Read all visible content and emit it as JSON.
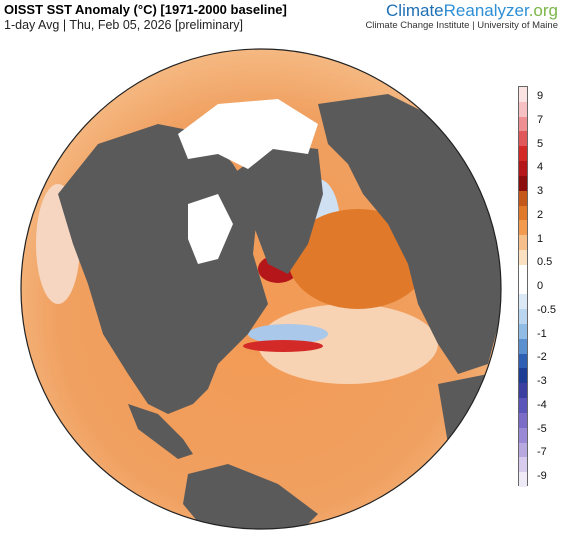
{
  "header": {
    "title": "OISST SST Anomaly (°C) [1971-2000 baseline]",
    "subtitle": "1-day Avg | Thu, Feb 05, 2026 [preliminary]"
  },
  "brand": {
    "name_part1": "Climate",
    "name_part2": "Reanalyzer",
    "name_part3": ".org",
    "subtitle": "Climate Change Institute | University of Maine"
  },
  "colorbar": {
    "labels": [
      "9",
      "7",
      "5",
      "4",
      "3",
      "2",
      "1",
      "0.5",
      "0",
      "-0.5",
      "-1",
      "-2",
      "-3",
      "-4",
      "-5",
      "-7",
      "-9"
    ],
    "colors": [
      "#fbe3e4",
      "#f7c0c2",
      "#ee8f91",
      "#e0585a",
      "#d42a27",
      "#b5161a",
      "#8c0d0d",
      "#c4571a",
      "#e07a2a",
      "#f29a4e",
      "#f7c08b",
      "#fbe0c2",
      "#ffffff",
      "#ffffff",
      "#dbe9f7",
      "#b9d5ef",
      "#8fbbe4",
      "#5a8fd0",
      "#2f5fb3",
      "#1c3d93",
      "#3a3fa0",
      "#5a55b8",
      "#7a6cc7",
      "#9a89d4",
      "#b8a8e0",
      "#d7cbee",
      "#efe9f8"
    ]
  },
  "map": {
    "land_color": "#5a5a5a",
    "ice_color": "#ffffff",
    "warm_color": "#f0904a",
    "cool_color": "#b9d5ef"
  }
}
